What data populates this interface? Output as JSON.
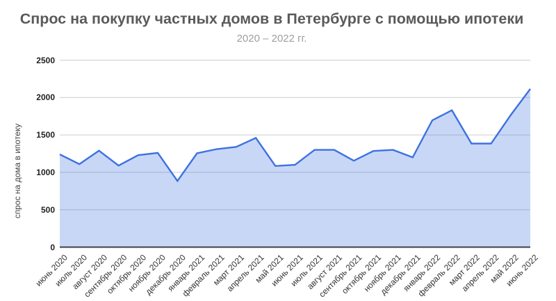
{
  "chart": {
    "title": "Спрос на покупку частных домов в Петербурге с помощью ипотеки",
    "subtitle": "2020 – 2022 гг.",
    "ylabel": "спрос на дома в ипотеку"
  },
  "chart_data": {
    "type": "area",
    "title": "Спрос на покупку частных домов в Петербурге с помощью ипотеки",
    "subtitle": "2020 – 2022 гг.",
    "xlabel": "",
    "ylabel": "спрос на дома в ипотеку",
    "categories": [
      "июнь 2020",
      "июль 2020",
      "август 2020",
      "сентябрь 2020",
      "октябрь 2020",
      "ноябрь 2020",
      "декабрь 2020",
      "январь 2021",
      "февраль 2021",
      "март 2021",
      "апрель 2021",
      "май 2021",
      "июнь 2021",
      "июль 2021",
      "август 2021",
      "сентябрь 2021",
      "октябрь 2021",
      "ноябрь 2021",
      "декабрь 2021",
      "январь 2022",
      "февраль 2022",
      "март 2022",
      "апрель 2022",
      "май 2022",
      "июнь 2022"
    ],
    "values": [
      1240,
      1110,
      1290,
      1090,
      1230,
      1260,
      885,
      1255,
      1310,
      1340,
      1460,
      1085,
      1100,
      1300,
      1300,
      1155,
      1285,
      1300,
      1200,
      1695,
      1830,
      1385,
      1385,
      1765,
      2115
    ],
    "ylim": [
      0,
      2500
    ],
    "yticks": [
      0,
      500,
      1000,
      1500,
      2000,
      2500
    ],
    "grid": true,
    "legend_position": "none",
    "colors": {
      "line": "#3d71e1",
      "area_fill": "rgba(61,113,225,0.28)",
      "gridline": "#cccccc",
      "baseline": "#3f4045",
      "title_text": "#5a5a5a",
      "subtitle_text": "#9e9e9e",
      "axis_text": "#1f1f1f"
    }
  }
}
